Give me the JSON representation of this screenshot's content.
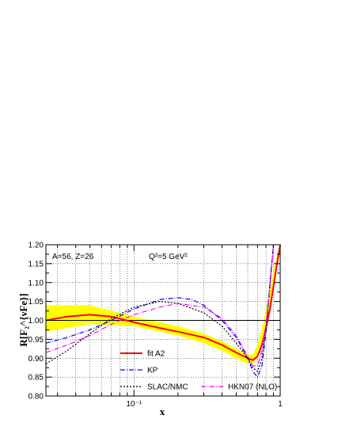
{
  "chart_data": {
    "type": "line",
    "xlabel": "x",
    "ylabel": "R[F₂^{νFe}]",
    "xscale": "log",
    "xlim": [
      0.025,
      1.0
    ],
    "ylim": [
      0.8,
      1.2
    ],
    "grid": true,
    "legend_position": "bottom",
    "x_tick_labels": [
      "10⁻¹",
      "1"
    ],
    "y_tick_labels": [
      "0.80",
      "0.85",
      "0.90",
      "0.95",
      "1.00",
      "1.05",
      "1.10",
      "1.15",
      "1.20"
    ],
    "annotations": [
      "A=56, Z=26",
      "Q²=5 GeV²"
    ],
    "reference_line": 1.0,
    "band": {
      "color": "#ffff00",
      "x": [
        0.025,
        0.05,
        0.1,
        0.2,
        0.3,
        0.4,
        0.5,
        0.6,
        0.65,
        0.7,
        0.75,
        0.8,
        0.85,
        0.9,
        0.95,
        1.0
      ],
      "upper": [
        1.04,
        1.04,
        1.01,
        0.985,
        0.965,
        0.945,
        0.925,
        0.91,
        0.91,
        0.935,
        0.98,
        1.03,
        1.08,
        1.13,
        1.17,
        1.2
      ],
      "lower": [
        0.97,
        0.99,
        0.985,
        0.96,
        0.94,
        0.92,
        0.9,
        0.885,
        0.885,
        0.9,
        0.93,
        0.97,
        1.02,
        1.08,
        1.14,
        1.18
      ]
    },
    "series": [
      {
        "name": "fit A2",
        "color": "#ff0000",
        "style": "solid",
        "x": [
          0.025,
          0.035,
          0.05,
          0.07,
          0.1,
          0.15,
          0.2,
          0.3,
          0.4,
          0.5,
          0.6,
          0.65,
          0.7,
          0.75,
          0.8,
          0.85,
          0.9,
          0.95,
          1.0
        ],
        "y": [
          1.0,
          1.01,
          1.015,
          1.01,
          0.995,
          0.98,
          0.97,
          0.955,
          0.935,
          0.915,
          0.9,
          0.895,
          0.905,
          0.935,
          0.98,
          1.03,
          1.09,
          1.15,
          1.2
        ]
      },
      {
        "name": "KP",
        "color": "#0000ff",
        "style": "dash-dot",
        "x": [
          0.025,
          0.035,
          0.05,
          0.07,
          0.1,
          0.15,
          0.2,
          0.25,
          0.3,
          0.4,
          0.5,
          0.6,
          0.65,
          0.7,
          0.75,
          0.8,
          0.85,
          0.9
        ],
        "y": [
          0.94,
          0.955,
          0.975,
          1.0,
          1.03,
          1.055,
          1.06,
          1.055,
          1.04,
          1.0,
          0.955,
          0.9,
          0.865,
          0.85,
          0.88,
          0.97,
          1.1,
          1.2
        ]
      },
      {
        "name": "SLAC/NMC",
        "color": "#000000",
        "style": "dotted",
        "x": [
          0.025,
          0.035,
          0.05,
          0.07,
          0.1,
          0.15,
          0.2,
          0.3,
          0.4,
          0.5,
          0.6,
          0.65,
          0.7,
          0.75,
          0.8,
          0.85,
          0.9
        ],
        "y": [
          0.885,
          0.92,
          0.965,
          1.005,
          1.035,
          1.05,
          1.045,
          1.02,
          0.985,
          0.94,
          0.9,
          0.875,
          0.865,
          0.9,
          0.98,
          1.09,
          1.2
        ]
      },
      {
        "name": "HKN07 (NLO)",
        "color": "#ff00ff",
        "style": "dash-dot",
        "x": [
          0.025,
          0.035,
          0.05,
          0.07,
          0.1,
          0.15,
          0.2,
          0.3,
          0.4,
          0.5,
          0.6,
          0.65,
          0.7,
          0.75,
          0.8,
          0.85,
          0.9
        ],
        "y": [
          0.915,
          0.935,
          0.96,
          0.99,
          1.015,
          1.035,
          1.045,
          1.035,
          1.005,
          0.96,
          0.905,
          0.88,
          0.88,
          0.92,
          0.99,
          1.09,
          1.2
        ]
      }
    ]
  }
}
